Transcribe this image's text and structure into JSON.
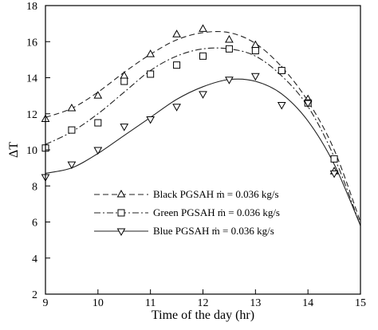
{
  "chart_data": {
    "type": "line",
    "xlabel": "Time of the day (hr)",
    "ylabel": "ΔT",
    "xlim": [
      9,
      15
    ],
    "ylim": [
      2,
      18
    ],
    "xticks": [
      "9",
      "10",
      "11",
      "12",
      "13",
      "14",
      "15"
    ],
    "yticks": [
      "2",
      "4",
      "6",
      "8",
      "10",
      "12",
      "14",
      "16",
      "18"
    ],
    "grid": false,
    "legend_position": "lower-left",
    "series": [
      {
        "name": "Black PGSAH  ṁ = 0.036 kg/s",
        "line_style": "dashed",
        "marker": "triangle-up",
        "curve_x": [
          9,
          9.5,
          10,
          10.5,
          11,
          11.5,
          12,
          12.5,
          13,
          13.5,
          14,
          14.5,
          15
        ],
        "curve_y": [
          11.8,
          12.3,
          13.2,
          14.3,
          15.3,
          16.1,
          16.5,
          16.5,
          15.9,
          14.6,
          12.7,
          10.0,
          6.0
        ],
        "points_x": [
          9,
          9.5,
          10,
          10.5,
          11,
          11.5,
          12,
          12.5,
          13,
          13.5,
          14,
          14.5
        ],
        "points_y": [
          11.7,
          12.3,
          13.0,
          14.1,
          15.3,
          16.4,
          16.7,
          16.1,
          15.8,
          14.4,
          12.8,
          8.8
        ]
      },
      {
        "name": "Green PGSAH  ṁ = 0.036 kg/s",
        "line_style": "dash-dot",
        "marker": "square",
        "curve_x": [
          9,
          9.5,
          10,
          10.5,
          11,
          11.5,
          12,
          12.5,
          13,
          13.5,
          14,
          14.5,
          15
        ],
        "curve_y": [
          10.3,
          11.0,
          12.0,
          13.2,
          14.4,
          15.2,
          15.6,
          15.6,
          15.2,
          14.1,
          12.4,
          9.6,
          5.8
        ],
        "points_x": [
          9,
          9.5,
          10,
          10.5,
          11,
          11.5,
          12,
          12.5,
          13,
          13.5,
          14,
          14.5
        ],
        "points_y": [
          10.1,
          11.1,
          11.5,
          13.8,
          14.2,
          14.7,
          15.2,
          15.6,
          15.5,
          14.4,
          12.6,
          9.5
        ]
      },
      {
        "name": "Blue PGSAH  ṁ = 0.036 kg/s",
        "line_style": "solid",
        "marker": "triangle-down",
        "curve_x": [
          9,
          9.5,
          10,
          10.5,
          11,
          11.5,
          12,
          12.5,
          13,
          13.5,
          14,
          14.5,
          15
        ],
        "curve_y": [
          8.7,
          9.0,
          9.8,
          10.8,
          11.8,
          12.8,
          13.5,
          13.9,
          13.8,
          13.1,
          11.6,
          9.2,
          5.8
        ],
        "points_x": [
          9,
          9.5,
          10,
          10.5,
          11,
          11.5,
          12,
          12.5,
          13,
          13.5,
          14,
          14.5
        ],
        "points_y": [
          8.5,
          9.2,
          10.0,
          11.3,
          11.7,
          12.4,
          13.1,
          13.9,
          14.1,
          12.5,
          12.6,
          8.7
        ]
      }
    ]
  }
}
